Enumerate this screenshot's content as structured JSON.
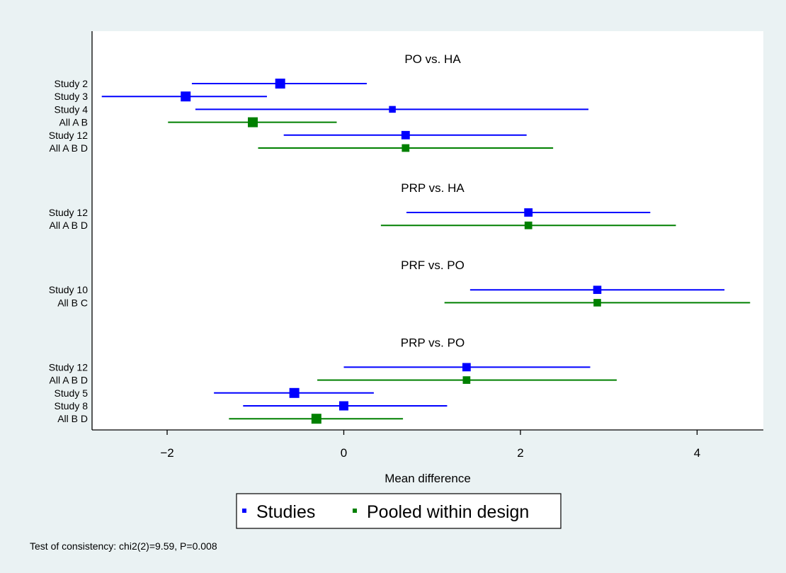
{
  "chart_data": {
    "type": "forest",
    "xlabel": "Mean difference",
    "xlim": [
      -2.85,
      4.75
    ],
    "xticks": [
      -2,
      0,
      2,
      4
    ],
    "grid": false,
    "legend": {
      "placement": "bottom-center",
      "entries": [
        {
          "label": "Studies",
          "color": "#0000ff"
        },
        {
          "label": "Pooled within design",
          "color": "#008000"
        }
      ]
    },
    "panels": [
      {
        "title": "PO vs. HA",
        "rows": [
          {
            "label": "Study 2",
            "type": "study",
            "estimate": -0.72,
            "lower": -1.72,
            "upper": 0.26
          },
          {
            "label": "Study 3",
            "type": "study",
            "estimate": -1.79,
            "lower": -2.74,
            "upper": -0.87
          },
          {
            "label": "Study 4",
            "type": "study",
            "estimate": 0.55,
            "lower": -1.68,
            "upper": 2.77
          },
          {
            "label": "All A B",
            "type": "pooled",
            "estimate": -1.03,
            "lower": -1.99,
            "upper": -0.08
          },
          {
            "label": "Study 12",
            "type": "study",
            "estimate": 0.7,
            "lower": -0.68,
            "upper": 2.07
          },
          {
            "label": "All A B D",
            "type": "pooled",
            "estimate": 0.7,
            "lower": -0.97,
            "upper": 2.37
          }
        ]
      },
      {
        "title": "PRP vs. HA",
        "rows": [
          {
            "label": "Study 12",
            "type": "study",
            "estimate": 2.09,
            "lower": 0.71,
            "upper": 3.47
          },
          {
            "label": "All A B D",
            "type": "pooled",
            "estimate": 2.09,
            "lower": 0.42,
            "upper": 3.76
          }
        ]
      },
      {
        "title": "PRF vs. PO",
        "rows": [
          {
            "label": "Study 10",
            "type": "study",
            "estimate": 2.87,
            "lower": 1.43,
            "upper": 4.31
          },
          {
            "label": "All B C",
            "type": "pooled",
            "estimate": 2.87,
            "lower": 1.14,
            "upper": 4.6
          }
        ]
      },
      {
        "title": "PRP vs. PO",
        "rows": [
          {
            "label": "Study 12",
            "type": "study",
            "estimate": 1.39,
            "lower": 0.0,
            "upper": 2.79
          },
          {
            "label": "All A B D",
            "type": "pooled",
            "estimate": 1.39,
            "lower": -0.3,
            "upper": 3.09
          },
          {
            "label": "Study 5",
            "type": "study",
            "estimate": -0.56,
            "lower": -1.47,
            "upper": 0.34
          },
          {
            "label": "Study 8",
            "type": "study",
            "estimate": 0.0,
            "lower": -1.14,
            "upper": 1.17
          },
          {
            "label": "All B D",
            "type": "pooled",
            "estimate": -0.31,
            "lower": -1.3,
            "upper": 0.67
          }
        ]
      }
    ]
  },
  "footer": {
    "note": "Test of consistency: chi2(2)=9.59, P=0.008"
  },
  "colors": {
    "background": "#eaf2f3",
    "plot_area": "#ffffff",
    "study": "#0000ff",
    "pooled": "#008000"
  }
}
